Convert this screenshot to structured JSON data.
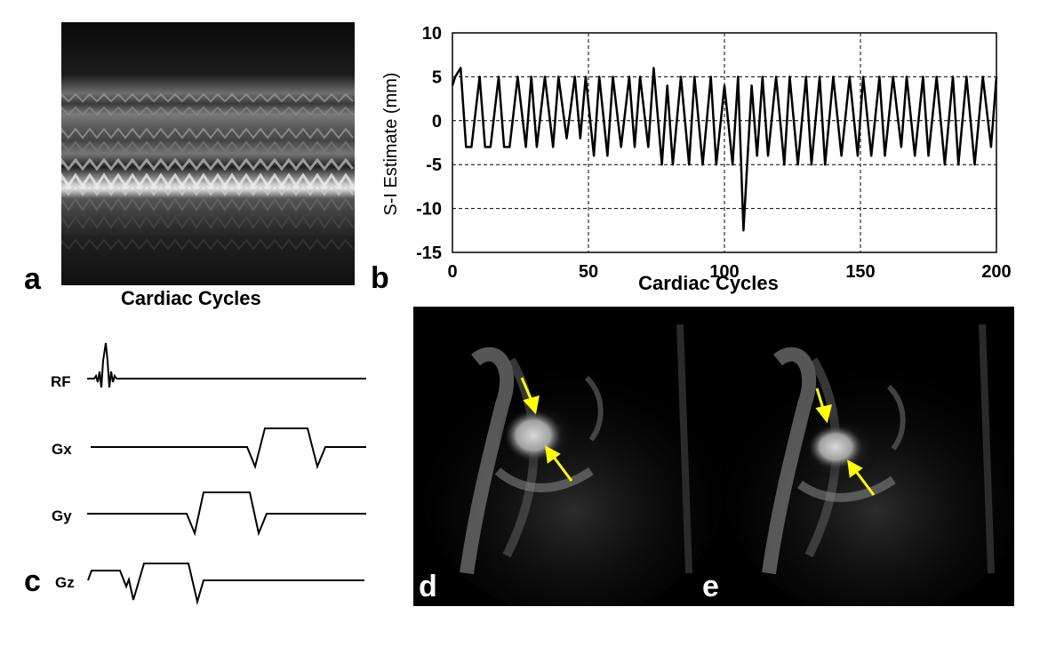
{
  "panels": {
    "a": {
      "letter": "a",
      "xlabel": "Cardiac Cycles"
    },
    "b": {
      "letter": "b"
    },
    "c": {
      "letter": "c",
      "rows": [
        "RF",
        "Gx",
        "Gy",
        "Gz"
      ]
    },
    "d": {
      "letter": "d"
    },
    "e": {
      "letter": "e"
    }
  },
  "colors": {
    "arrow": "#ffff00",
    "mri_background": "#000000",
    "trace": "#000000"
  },
  "chart_data": {
    "type": "line",
    "xlabel": "Cardiac Cycles",
    "ylabel": "S-I Estimate (mm)",
    "xlim": [
      0,
      200
    ],
    "ylim": [
      -15,
      10
    ],
    "xticks": [
      0,
      50,
      100,
      150,
      200
    ],
    "yticks": [
      -15,
      -10,
      -5,
      0,
      5,
      10
    ],
    "grid": true,
    "series": [
      {
        "x": [
          0,
          1,
          3,
          5,
          7,
          10,
          12,
          14,
          17,
          19,
          21,
          24,
          27,
          29,
          31,
          34,
          37,
          39,
          42,
          45,
          47,
          49,
          52,
          54,
          57,
          59,
          62,
          65,
          67,
          69,
          72,
          74,
          77,
          79,
          81,
          84,
          87,
          89,
          92,
          95,
          97,
          100,
          103,
          105,
          107,
          110,
          112,
          114,
          116,
          119,
          122,
          124,
          127,
          130,
          132,
          135,
          137,
          140,
          143,
          146,
          149,
          151,
          154,
          157,
          159,
          162,
          165,
          167,
          170,
          173,
          175,
          178,
          181,
          184,
          186,
          189,
          192,
          195,
          198,
          200
        ],
        "y": [
          4,
          5,
          6,
          -3,
          -3,
          5,
          -3,
          -3,
          5,
          -3,
          -3,
          5,
          -3,
          5,
          -3,
          5,
          -3,
          5,
          -2,
          5,
          -2,
          5,
          -4,
          5,
          -4,
          5,
          -3,
          5,
          -3,
          5,
          -3,
          6,
          -5,
          4,
          -5,
          5,
          -5,
          5,
          -5,
          5,
          -5,
          4,
          -5,
          5,
          -12.5,
          4,
          -4,
          5,
          -4,
          5,
          -5,
          5,
          -5,
          5,
          -5,
          5,
          -5,
          5,
          -4,
          5,
          -4,
          5,
          -4,
          5,
          -4,
          5,
          -3,
          5,
          -4,
          5,
          -4,
          5,
          -5,
          5,
          -5,
          5,
          -5,
          5,
          -3,
          5
        ]
      }
    ]
  }
}
